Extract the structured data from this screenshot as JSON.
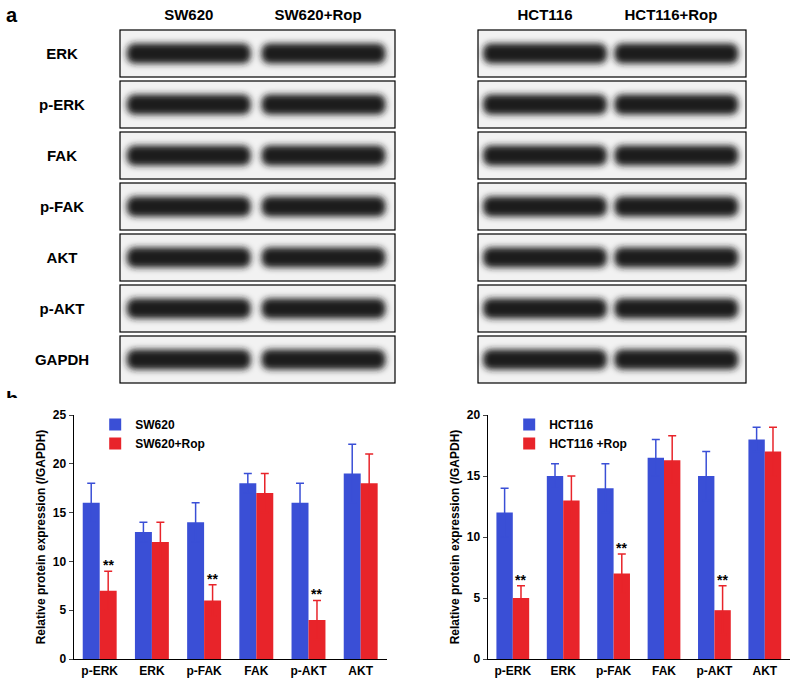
{
  "blot": {
    "label": "a",
    "rows": [
      "ERK",
      "p-ERK",
      "FAK",
      "p-FAK",
      "AKT",
      "p-AKT",
      "GAPDH"
    ],
    "groups": [
      [
        "SW620",
        "SW620+Rop"
      ],
      [
        "HCT116",
        "HCT116+Rop"
      ]
    ]
  },
  "panel_b_label": "b",
  "chart_data": [
    {
      "type": "bar",
      "y_label": "Relative protein expression (/GAPDH)",
      "categories": [
        "p-ERK",
        "ERK",
        "p-FAK",
        "FAK",
        "p-AKT",
        "AKT"
      ],
      "series": [
        {
          "name": "SW620",
          "color": "#3a4fd6",
          "values": [
            16,
            13,
            14,
            18,
            16,
            19
          ],
          "error": [
            2,
            1,
            2,
            1,
            2,
            3
          ]
        },
        {
          "name": "SW620+Rop",
          "color": "#e8242a",
          "values": [
            7,
            12,
            6,
            17,
            4,
            18
          ],
          "error": [
            2,
            2,
            1.6,
            2,
            2,
            3
          ]
        }
      ],
      "ylim": [
        0,
        25
      ],
      "yticks": [
        0,
        5,
        10,
        15,
        20,
        25
      ],
      "grid": false,
      "legend": "upper left",
      "annotations": [
        {
          "category": "p-ERK",
          "series": "SW620+Rop",
          "text": "**"
        },
        {
          "category": "p-FAK",
          "series": "SW620+Rop",
          "text": "**"
        },
        {
          "category": "p-AKT",
          "series": "SW620+Rop",
          "text": "**"
        }
      ]
    },
    {
      "type": "bar",
      "y_label": "Relative protein expression (/GAPDH)",
      "categories": [
        "p-ERK",
        "ERK",
        "p-FAK",
        "FAK",
        "p-AKT",
        "AKT"
      ],
      "series": [
        {
          "name": "HCT116",
          "color": "#3a4fd6",
          "values": [
            12,
            15,
            14,
            16.5,
            15,
            18
          ],
          "error": [
            2,
            1,
            2,
            1.5,
            2,
            1
          ]
        },
        {
          "name": "HCT116 +Rop",
          "color": "#e8242a",
          "values": [
            5,
            13,
            7,
            16.3,
            4,
            17
          ],
          "error": [
            1,
            2,
            1.6,
            2,
            2,
            2
          ]
        }
      ],
      "ylim": [
        0,
        20
      ],
      "yticks": [
        0,
        5,
        10,
        15,
        20
      ],
      "grid": false,
      "legend": "upper left",
      "annotations": [
        {
          "category": "p-ERK",
          "series": "HCT116 +Rop",
          "text": "**"
        },
        {
          "category": "p-FAK",
          "series": "HCT116 +Rop",
          "text": "**"
        },
        {
          "category": "p-AKT",
          "series": "HCT116 +Rop",
          "text": "**"
        }
      ]
    }
  ]
}
